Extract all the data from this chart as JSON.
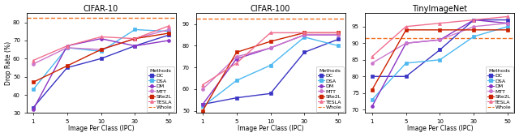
{
  "ipc": [
    1,
    5,
    10,
    30,
    50
  ],
  "cifar10": {
    "title": "CIFAR-10",
    "ylabel": "Drop Rate (%)",
    "xlabel": "Image Per Class (IPC)",
    "ylim": [
      30,
      85
    ],
    "yticks": [
      30,
      40,
      50,
      60,
      70,
      80
    ],
    "whole": 82.5,
    "DC": [
      33,
      55,
      60,
      67,
      73
    ],
    "DSA": [
      43,
      66,
      64,
      76,
      75
    ],
    "DM": [
      32,
      67,
      71,
      67,
      70
    ],
    "MTT": [
      57,
      66,
      65,
      71,
      76
    ],
    "SRe2L": [
      47,
      56,
      65,
      71,
      74
    ],
    "TESLA": [
      59,
      67,
      72,
      71,
      78
    ]
  },
  "cifar100": {
    "title": "CIFAR-100",
    "ylabel": "",
    "xlabel": "Image Per Class (IPC)",
    "ylim": [
      49,
      95
    ],
    "yticks": [
      50,
      60,
      70,
      80,
      90
    ],
    "whole": 92.5,
    "DC": [
      53,
      56,
      58,
      77,
      83
    ],
    "DSA": [
      52,
      64,
      71,
      84,
      80
    ],
    "DM": [
      53,
      74,
      79,
      85,
      85
    ],
    "MTT": [
      60,
      75,
      79,
      85,
      85
    ],
    "SRe2L": [
      50,
      77,
      82,
      86,
      86
    ],
    "TESLA": [
      62,
      72,
      86,
      86,
      86
    ]
  },
  "tinyimagenet": {
    "title": "TinyImageNet",
    "ylabel": "",
    "xlabel": "Image Per Class (IPC)",
    "ylim": [
      69,
      99
    ],
    "yticks": [
      70,
      75,
      80,
      85,
      90,
      95
    ],
    "whole": 91.5,
    "DC": [
      80,
      80,
      88,
      97,
      97
    ],
    "DSA": [
      73,
      84,
      85,
      92,
      95
    ],
    "DM": [
      71,
      90,
      91,
      97,
      96
    ],
    "MTT": [
      84,
      90,
      91,
      95,
      96
    ],
    "SRe2L": [
      76,
      94,
      94,
      94,
      94
    ],
    "TESLA": [
      86,
      95,
      96,
      97,
      98
    ]
  },
  "colors": {
    "DC": "#3a35c4",
    "DSA": "#4db8f0",
    "DM": "#8b35c4",
    "MTT": "#cc77cc",
    "SRe2L": "#cc2200",
    "TESLA": "#f07090",
    "Whole": "#f07020"
  },
  "markers": {
    "DC": "s",
    "DSA": "s",
    "DM": "o",
    "MTT": "o",
    "SRe2L": "s",
    "TESLA": "^"
  },
  "figsize": [
    6.4,
    1.69
  ],
  "dpi": 100
}
